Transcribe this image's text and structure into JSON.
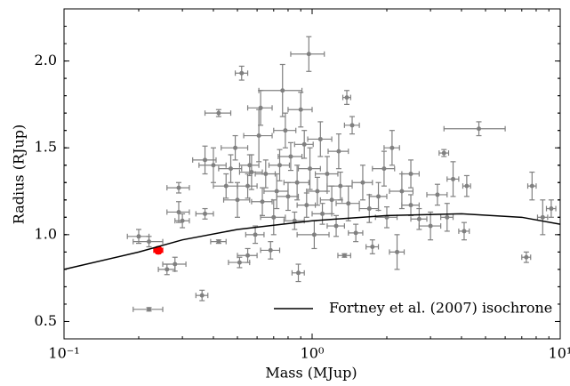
{
  "chart_data": {
    "type": "scatter",
    "x_label": "Mass (MJup)",
    "y_label": "Radius (RJup)",
    "xscale": "log",
    "xlim": [
      0.1,
      10
    ],
    "ylim": [
      0.4,
      2.3
    ],
    "xticks": [
      {
        "value": 0.1,
        "label": "10⁻¹"
      },
      {
        "value": 1,
        "label": "10⁰"
      },
      {
        "value": 10,
        "label": "10¹"
      }
    ],
    "yticks": [
      0.5,
      {
        "value": 1,
        "label": "1.0"
      },
      1.5,
      {
        "value": 2,
        "label": "2.0"
      }
    ],
    "legend_position": "lower right",
    "series": [
      {
        "color": "#808080",
        "x": [
          0.22,
          0.36,
          0.26,
          0.28,
          0.2,
          0.22,
          0.29,
          0.29,
          0.3,
          0.37,
          0.37,
          0.4,
          0.42,
          0.42,
          0.45,
          0.47,
          0.49,
          0.5,
          0.51,
          0.52,
          0.55,
          0.55,
          0.57,
          0.59,
          0.61,
          0.62,
          0.63,
          0.65,
          0.68,
          0.7,
          0.72,
          0.74,
          0.76,
          0.78,
          0.8,
          0.82,
          0.85,
          0.87,
          0.88,
          0.9,
          0.93,
          0.95,
          0.97,
          0.98,
          1.02,
          1.05,
          1.08,
          1.1,
          1.15,
          1.2,
          1.25,
          1.28,
          1.35,
          1.38,
          1.4,
          1.45,
          1.5,
          1.6,
          1.7,
          1.75,
          1.85,
          1.95,
          2.0,
          2.1,
          2.2,
          2.3,
          2.5,
          2.7,
          3.0,
          3.2,
          3.4,
          3.5,
          3.7,
          4.1,
          4.2,
          4.7,
          7.3,
          7.7,
          8.5,
          9.2,
          2.5,
          0.56,
          1.3
        ],
        "values": [
          0.57,
          0.65,
          0.8,
          0.83,
          0.99,
          0.96,
          1.13,
          1.27,
          1.08,
          1.12,
          1.43,
          1.4,
          1.7,
          0.96,
          1.28,
          1.38,
          1.5,
          1.2,
          0.84,
          1.93,
          0.88,
          1.28,
          1.36,
          1.0,
          1.57,
          1.73,
          1.19,
          1.35,
          0.91,
          1.1,
          1.25,
          1.4,
          1.83,
          1.6,
          1.22,
          1.45,
          1.08,
          1.3,
          0.78,
          1.72,
          1.52,
          1.17,
          2.04,
          1.38,
          1.0,
          1.25,
          1.55,
          1.12,
          1.35,
          1.2,
          1.05,
          1.48,
          0.88,
          1.79,
          1.18,
          1.63,
          1.01,
          1.3,
          1.15,
          0.93,
          1.22,
          1.38,
          1.1,
          1.5,
          0.9,
          1.25,
          1.35,
          1.09,
          1.05,
          1.23,
          1.47,
          1.1,
          1.32,
          1.02,
          1.28,
          1.61,
          0.87,
          1.28,
          1.1,
          1.15,
          1.17,
          1.4,
          1.28
        ],
        "x_err": [
          0.03,
          0.02,
          0.02,
          0.03,
          0.02,
          0.03,
          0.03,
          0.03,
          0.02,
          0.03,
          0.04,
          0.05,
          0.05,
          0.03,
          0.05,
          0.05,
          0.06,
          0.06,
          0.05,
          0.03,
          0.05,
          0.05,
          0.06,
          0.05,
          0.08,
          0.07,
          0.06,
          0.06,
          0.06,
          0.08,
          0.08,
          0.07,
          0.15,
          0.08,
          0.08,
          0.09,
          0.08,
          0.1,
          0.05,
          0.1,
          0.08,
          0.08,
          0.15,
          0.1,
          0.15,
          0.1,
          0.12,
          0.1,
          0.12,
          0.12,
          0.1,
          0.12,
          0.08,
          0.05,
          0.15,
          0.1,
          0.1,
          0.15,
          0.15,
          0.1,
          0.15,
          0.2,
          0.2,
          0.15,
          0.15,
          0.25,
          0.2,
          0.2,
          0.3,
          0.3,
          0.15,
          0.2,
          0.2,
          0.2,
          0.15,
          1.3,
          0.3,
          0.3,
          0.4,
          0.4,
          0.2,
          0.05,
          0.15
        ],
        "y_err": [
          0.01,
          0.03,
          0.03,
          0.04,
          0.04,
          0.03,
          0.06,
          0.03,
          0.04,
          0.03,
          0.08,
          0.1,
          0.02,
          0.01,
          0.07,
          0.08,
          0.07,
          0.1,
          0.03,
          0.04,
          0.04,
          0.07,
          0.1,
          0.05,
          0.15,
          0.1,
          0.08,
          0.08,
          0.05,
          0.1,
          0.1,
          0.09,
          0.15,
          0.1,
          0.08,
          0.08,
          0.05,
          0.1,
          0.05,
          0.1,
          0.08,
          0.07,
          0.1,
          0.12,
          0.08,
          0.08,
          0.1,
          0.06,
          0.1,
          0.08,
          0.06,
          0.1,
          0.01,
          0.04,
          0.1,
          0.05,
          0.05,
          0.1,
          0.08,
          0.04,
          0.08,
          0.1,
          0.06,
          0.1,
          0.1,
          0.1,
          0.08,
          0.06,
          0.08,
          0.06,
          0.02,
          0.08,
          0.1,
          0.05,
          0.06,
          0.04,
          0.03,
          0.08,
          0.1,
          0.05,
          0.06,
          0.06,
          0.08
        ]
      },
      {
        "color": "#ff0000",
        "x": [
          0.24
        ],
        "values": [
          0.91
        ],
        "x_err": [
          0.01
        ],
        "y_err": [
          0.02
        ]
      },
      {
        "name": "Fortney et al. (2007) isochrone",
        "color": "#000000",
        "style": "line",
        "x": [
          0.1,
          0.2,
          0.3,
          0.5,
          1,
          2,
          4,
          7,
          10
        ],
        "values": [
          0.8,
          0.9,
          0.97,
          1.03,
          1.08,
          1.11,
          1.12,
          1.1,
          1.06
        ]
      }
    ]
  }
}
